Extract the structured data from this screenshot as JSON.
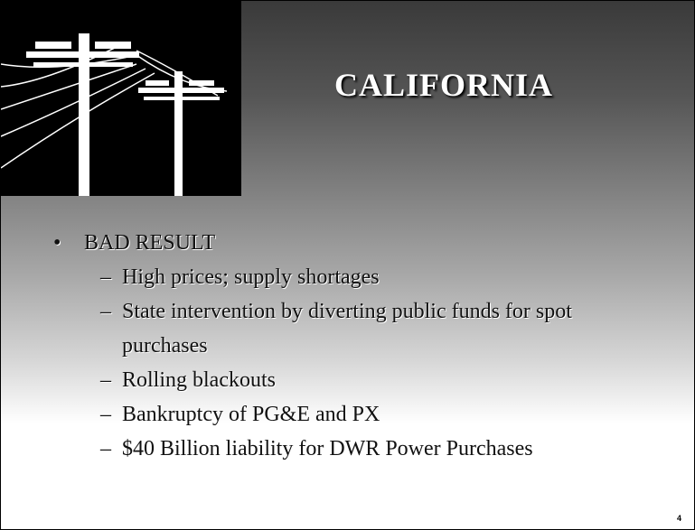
{
  "title": "CALIFORNIA",
  "bullet": {
    "marker": "•",
    "text": "BAD RESULT"
  },
  "items": [
    {
      "marker": "–",
      "text": "High prices; supply shortages"
    },
    {
      "marker": "–",
      "text": "State intervention by diverting public funds for spot purchases"
    },
    {
      "marker": "–",
      "text": "Rolling blackouts"
    },
    {
      "marker": "–",
      "text": "Bankruptcy of PG&E and PX"
    },
    {
      "marker": "–",
      "text": "$40 Billion liability for DWR Power Purchases"
    }
  ],
  "page_number": "4"
}
